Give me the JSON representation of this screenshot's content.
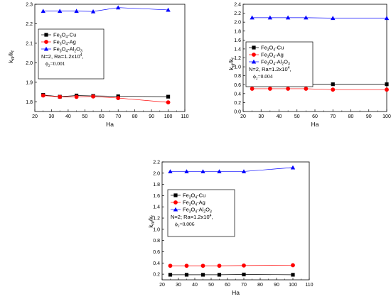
{
  "colors": {
    "cu": "#000000",
    "ag": "#ff0000",
    "al2o3": "#0000ff",
    "axis": "#000000"
  },
  "chart_data": [
    {
      "type": "line",
      "xlabel": "Ha",
      "ylabel_main": "k",
      "ylabel_sub1": "nf",
      "ylabel_mid": "/k",
      "ylabel_sub2": "f",
      "xlim": [
        20,
        110
      ],
      "ylim": [
        1.75,
        2.3
      ],
      "x_ticks": [
        20,
        30,
        40,
        50,
        60,
        70,
        80,
        90,
        100,
        110
      ],
      "y_ticks": [
        1.8,
        1.9,
        2.0,
        2.1,
        2.2,
        2.3
      ],
      "x_tick_labels": [
        "20",
        "30",
        "40",
        "50",
        "60",
        "70",
        "80",
        "90",
        "100",
        "110"
      ],
      "y_tick_labels": [
        "1.8",
        "1.9",
        "2.0",
        "2.1",
        "2.2",
        "2.3"
      ],
      "x": [
        25,
        35,
        45,
        55,
        70,
        100
      ],
      "series": [
        {
          "name": "Fe3O4-Cu",
          "marker": "square",
          "color": "#000000",
          "values": [
            1.835,
            1.826,
            1.832,
            1.83,
            1.828,
            1.826
          ]
        },
        {
          "name": "Fe3O4-Ag",
          "marker": "circle",
          "color": "#ff0000",
          "values": [
            1.832,
            1.825,
            1.825,
            1.827,
            1.819,
            1.797
          ]
        },
        {
          "name": "Fe3O4-Al2O3",
          "marker": "triangle",
          "color": "#0000ff",
          "values": [
            2.265,
            2.265,
            2.265,
            2.263,
            2.283,
            2.271
          ]
        }
      ],
      "legend": {
        "entries": [
          {
            "base": "Fe",
            "s1": "3",
            "mid": "O",
            "s2": "4",
            "rest": "-Cu"
          },
          {
            "base": "Fe",
            "s1": "3",
            "mid": "O",
            "s2": "4",
            "rest": "-Ag"
          },
          {
            "base": "Fe",
            "s1": "3",
            "mid": "O",
            "s2": "4",
            "rest": "-Al",
            "s3": "2",
            "mid2": "O",
            "s4": "3"
          }
        ],
        "params_main": "N=2, Ra=1.2x10",
        "params_sup": "4",
        "params_end": ",",
        "phi_main": "ϕ",
        "phi_sub": "2",
        "phi_val": "=0.001"
      }
    },
    {
      "type": "line",
      "xlabel": "Ha",
      "ylabel_main": "k",
      "ylabel_sub1": "nf",
      "ylabel_mid": "/k",
      "ylabel_sub2": "f",
      "xlim": [
        20,
        100
      ],
      "ylim": [
        0,
        2.4
      ],
      "x_ticks": [
        20,
        30,
        40,
        50,
        60,
        70,
        80,
        90,
        100
      ],
      "y_ticks": [
        0.0,
        0.2,
        0.4,
        0.6,
        0.8,
        1.0,
        1.2,
        1.4,
        1.6,
        1.8,
        2.0,
        2.2,
        2.4
      ],
      "x_tick_labels": [
        "20",
        "30",
        "40",
        "50",
        "60",
        "70",
        "80",
        "90",
        "100"
      ],
      "y_tick_labels": [
        "0.0",
        "0.2",
        "0.4",
        "0.6",
        "0.8",
        "1.0",
        "1.2",
        "1.4",
        "1.6",
        "1.8",
        "2.0",
        "2.2",
        "2.4"
      ],
      "x": [
        25,
        35,
        45,
        55,
        70,
        100
      ],
      "series": [
        {
          "name": "Fe3O4-Cu",
          "marker": "square",
          "color": "#000000",
          "values": [
            0.61,
            0.61,
            0.61,
            0.61,
            0.61,
            0.61
          ]
        },
        {
          "name": "Fe3O4-Ag",
          "marker": "circle",
          "color": "#ff0000",
          "values": [
            0.51,
            0.51,
            0.51,
            0.51,
            0.49,
            0.49
          ]
        },
        {
          "name": "Fe3O4-Al2O3",
          "marker": "triangle",
          "color": "#0000ff",
          "values": [
            2.1,
            2.1,
            2.1,
            2.1,
            2.09,
            2.09
          ]
        }
      ],
      "legend": {
        "entries": [
          {
            "base": "Fe",
            "s1": "3",
            "mid": "O",
            "s2": "4",
            "rest": "-Cu"
          },
          {
            "base": "Fe",
            "s1": "3",
            "mid": "O",
            "s2": "4",
            "rest": "-Ag"
          },
          {
            "base": "Fe",
            "s1": "3",
            "mid": "O",
            "s2": "4",
            "rest": "-Al",
            "s3": "2",
            "mid2": "O",
            "s4": "3"
          }
        ],
        "params_main": "N=2, Ra=1.2x10",
        "params_sup": "4",
        "params_end": ",",
        "phi_main": "ϕ",
        "phi_sub": "2",
        "phi_val": "=0.004"
      }
    },
    {
      "type": "line",
      "xlabel": "Ha",
      "ylabel_main": "k",
      "ylabel_sub1": "nf",
      "ylabel_mid": "/k",
      "ylabel_sub2": "f",
      "xlim": [
        20,
        110
      ],
      "ylim": [
        0.1,
        2.2
      ],
      "x_ticks": [
        20,
        30,
        40,
        50,
        60,
        70,
        80,
        90,
        100,
        110
      ],
      "y_ticks": [
        0.2,
        0.4,
        0.6,
        0.8,
        1.0,
        1.2,
        1.4,
        1.6,
        1.8,
        2.0,
        2.2
      ],
      "x_tick_labels": [
        "20",
        "30",
        "40",
        "50",
        "60",
        "70",
        "80",
        "90",
        "100",
        "110"
      ],
      "y_tick_labels": [
        "0.2",
        "0.4",
        "0.6",
        "0.8",
        "1.0",
        "1.2",
        "1.4",
        "1.6",
        "1.8",
        "2.0",
        "2.2"
      ],
      "x": [
        25,
        35,
        45,
        55,
        70,
        100
      ],
      "series": [
        {
          "name": "Fe3O4-Cu",
          "marker": "square",
          "color": "#000000",
          "values": [
            0.19,
            0.19,
            0.19,
            0.19,
            0.195,
            0.19
          ]
        },
        {
          "name": "Fe3O4-Ag",
          "marker": "circle",
          "color": "#ff0000",
          "values": [
            0.35,
            0.35,
            0.35,
            0.35,
            0.355,
            0.36
          ]
        },
        {
          "name": "Fe3O4-Al2O3",
          "marker": "triangle",
          "color": "#0000ff",
          "values": [
            2.03,
            2.03,
            2.03,
            2.03,
            2.03,
            2.1
          ]
        }
      ],
      "legend": {
        "entries": [
          {
            "base": "Fe",
            "s1": "3",
            "mid": "O",
            "s2": "4",
            "rest": "-Cu"
          },
          {
            "base": "Fe",
            "s1": "3",
            "mid": "O",
            "s2": "4",
            "rest": "-Ag"
          },
          {
            "base": "Fe",
            "s1": "3",
            "mid": "O",
            "s2": "4",
            "rest": "-Al",
            "s3": "2",
            "mid2": "O",
            "s4": "3"
          }
        ],
        "params_main": "N=2; Ra=1.2x10",
        "params_sup": "4",
        "params_end": ",",
        "phi_main": "ϕ",
        "phi_sub": "2",
        "phi_val": "=0.006"
      }
    }
  ]
}
